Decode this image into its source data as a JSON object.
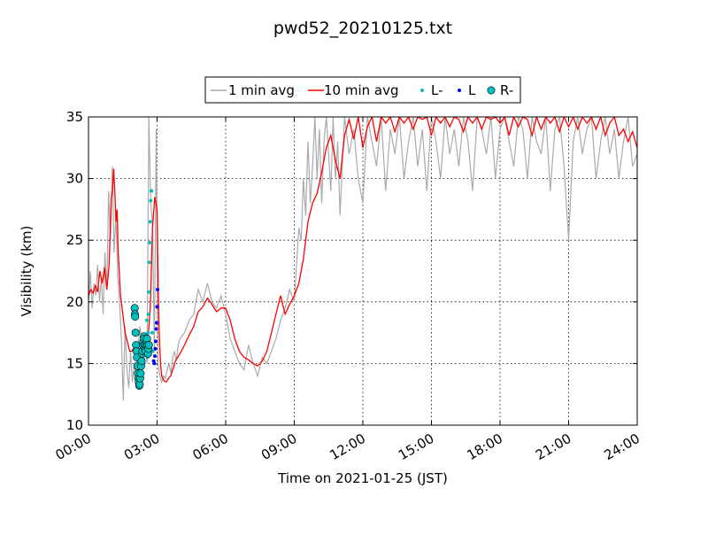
{
  "chart_data": {
    "type": "line",
    "title": "pwd52_20210125.txt",
    "xlabel": "Time on 2021-01-25 (JST)",
    "ylabel": "Visibility (km)",
    "x_unit": "hours",
    "xlim": [
      0,
      24
    ],
    "ylim": [
      10,
      35
    ],
    "x_ticks": [
      0,
      3,
      6,
      9,
      12,
      15,
      18,
      21,
      24
    ],
    "x_tick_labels": [
      "00:00",
      "03:00",
      "06:00",
      "09:00",
      "12:00",
      "15:00",
      "18:00",
      "21:00",
      "24:00"
    ],
    "y_ticks": [
      10,
      15,
      20,
      25,
      30,
      35
    ],
    "y_tick_labels": [
      "10",
      "15",
      "20",
      "25",
      "30",
      "35"
    ],
    "grid": true,
    "legend_placement": "top-center",
    "colors": {
      "one_min": "#aaaaaa",
      "ten_min": "#ff0000",
      "L_minus": "#00bfbf",
      "L": "#0000ff",
      "R_minus": "#00bfbf"
    },
    "legend": [
      {
        "label": "1 min avg",
        "kind": "line",
        "color": "#aaaaaa"
      },
      {
        "label": "10 min avg",
        "kind": "line",
        "color": "#ff0000"
      },
      {
        "label": "L-",
        "kind": "dot",
        "color": "#00bfbf"
      },
      {
        "label": "L",
        "kind": "dot",
        "color": "#0000ff"
      },
      {
        "label": "R-",
        "kind": "circle",
        "color": "#00bfbf"
      }
    ],
    "series": [
      {
        "name": "1 min avg",
        "x": [
          0.0,
          0.08,
          0.16,
          0.24,
          0.32,
          0.4,
          0.48,
          0.56,
          0.64,
          0.72,
          0.8,
          0.88,
          0.96,
          1.04,
          1.12,
          1.2,
          1.28,
          1.36,
          1.44,
          1.52,
          1.6,
          1.68,
          1.76,
          1.84,
          1.92,
          2.0,
          2.08,
          2.16,
          2.24,
          2.32,
          2.4,
          2.48,
          2.56,
          2.64,
          2.72,
          2.8,
          2.88,
          2.96,
          3.04,
          3.12,
          3.2,
          3.28,
          3.36,
          3.44,
          3.52,
          3.6,
          3.68,
          3.76,
          3.84,
          3.92,
          4.0,
          4.2,
          4.4,
          4.6,
          4.8,
          5.0,
          5.2,
          5.4,
          5.6,
          5.8,
          6.0,
          6.2,
          6.4,
          6.6,
          6.8,
          7.0,
          7.2,
          7.4,
          7.6,
          7.8,
          8.0,
          8.2,
          8.4,
          8.6,
          8.8,
          9.0,
          9.1,
          9.2,
          9.3,
          9.4,
          9.5,
          9.6,
          9.7,
          9.8,
          9.9,
          10.0,
          10.1,
          10.2,
          10.3,
          10.4,
          10.5,
          10.6,
          10.7,
          10.8,
          10.9,
          11.0,
          11.2,
          11.4,
          11.6,
          11.8,
          12.0,
          12.2,
          12.4,
          12.6,
          12.8,
          13.0,
          13.2,
          13.4,
          13.6,
          13.8,
          14.0,
          14.2,
          14.4,
          14.6,
          14.8,
          15.0,
          15.2,
          15.4,
          15.6,
          15.8,
          16.0,
          16.2,
          16.4,
          16.6,
          16.8,
          17.0,
          17.2,
          17.4,
          17.6,
          17.8,
          18.0,
          18.2,
          18.4,
          18.6,
          18.8,
          19.0,
          19.2,
          19.4,
          19.6,
          19.8,
          20.0,
          20.2,
          20.4,
          20.6,
          20.8,
          21.0,
          21.2,
          21.4,
          21.6,
          21.8,
          22.0,
          22.2,
          22.4,
          22.6,
          22.8,
          23.0,
          23.2,
          23.4,
          23.6,
          23.8,
          24.0
        ],
        "values": [
          20.0,
          22.5,
          19.5,
          21.5,
          20.5,
          23.0,
          20.0,
          22.0,
          19.0,
          24.0,
          21.0,
          29.0,
          25.0,
          31.0,
          24.0,
          27.0,
          22.0,
          20.0,
          17.0,
          12.0,
          18.0,
          14.5,
          13.0,
          16.0,
          13.5,
          15.0,
          14.0,
          16.0,
          18.0,
          17.0,
          15.0,
          16.5,
          15.0,
          35.0,
          28.0,
          26.5,
          16.0,
          34.0,
          15.0,
          14.0,
          13.5,
          14.0,
          13.8,
          14.5,
          15.0,
          14.2,
          15.5,
          16.0,
          15.2,
          16.5,
          17.0,
          17.5,
          18.5,
          19.0,
          21.0,
          20.0,
          21.5,
          20.0,
          19.5,
          20.5,
          19.0,
          17.0,
          16.0,
          15.0,
          14.5,
          16.5,
          15.0,
          14.0,
          15.5,
          15.0,
          16.0,
          17.0,
          18.5,
          19.5,
          21.0,
          20.0,
          23.0,
          26.0,
          25.0,
          30.0,
          27.0,
          33.0,
          28.0,
          31.0,
          35.0,
          30.0,
          34.0,
          28.0,
          33.0,
          35.0,
          32.0,
          29.0,
          35.0,
          30.0,
          33.0,
          27.0,
          35.0,
          32.0,
          34.0,
          30.0,
          28.0,
          35.0,
          33.0,
          31.0,
          35.0,
          29.0,
          34.0,
          32.0,
          35.0,
          30.0,
          33.0,
          35.0,
          31.0,
          34.0,
          29.0,
          35.0,
          33.0,
          30.0,
          35.0,
          32.0,
          34.0,
          31.0,
          35.0,
          33.0,
          29.0,
          35.0,
          34.0,
          32.0,
          35.0,
          30.0,
          34.0,
          35.0,
          33.0,
          31.0,
          35.0,
          34.0,
          30.0,
          35.0,
          33.0,
          32.0,
          35.0,
          29.0,
          34.0,
          35.0,
          31.0,
          25.0,
          33.0,
          35.0,
          32.0,
          34.0,
          35.0,
          30.0,
          33.0,
          35.0,
          32.0,
          34.0,
          30.0,
          33.0,
          35.0,
          31.0,
          32.0
        ]
      },
      {
        "name": "10 min avg",
        "x": [
          0.0,
          0.1,
          0.2,
          0.3,
          0.4,
          0.5,
          0.6,
          0.7,
          0.8,
          0.9,
          1.0,
          1.05,
          1.1,
          1.15,
          1.2,
          1.25,
          1.3,
          1.4,
          1.5,
          1.6,
          1.7,
          1.8,
          1.9,
          2.0,
          2.1,
          2.2,
          2.3,
          2.4,
          2.5,
          2.6,
          2.7,
          2.8,
          2.9,
          3.0,
          3.05,
          3.1,
          3.15,
          3.2,
          3.3,
          3.4,
          3.5,
          3.6,
          3.7,
          3.8,
          4.0,
          4.2,
          4.4,
          4.6,
          4.8,
          5.0,
          5.2,
          5.4,
          5.6,
          5.8,
          6.0,
          6.2,
          6.4,
          6.6,
          6.8,
          7.0,
          7.2,
          7.4,
          7.6,
          7.8,
          8.0,
          8.2,
          8.4,
          8.6,
          8.8,
          9.0,
          9.2,
          9.4,
          9.6,
          9.8,
          10.0,
          10.2,
          10.4,
          10.6,
          10.8,
          11.0,
          11.2,
          11.4,
          11.6,
          11.8,
          12.0,
          12.2,
          12.4,
          12.6,
          12.8,
          13.0,
          13.2,
          13.4,
          13.6,
          13.8,
          14.0,
          14.2,
          14.4,
          14.6,
          14.8,
          15.0,
          15.2,
          15.4,
          15.6,
          15.8,
          16.0,
          16.2,
          16.4,
          16.6,
          16.8,
          17.0,
          17.2,
          17.4,
          17.6,
          17.8,
          18.0,
          18.2,
          18.4,
          18.6,
          18.8,
          19.0,
          19.2,
          19.4,
          19.6,
          19.8,
          20.0,
          20.2,
          20.4,
          20.6,
          20.8,
          21.0,
          21.2,
          21.4,
          21.6,
          21.8,
          22.0,
          22.2,
          22.4,
          22.6,
          22.8,
          23.0,
          23.2,
          23.4,
          23.6,
          23.8,
          24.0
        ],
        "values": [
          20.5,
          21.0,
          20.7,
          21.3,
          20.8,
          22.5,
          21.5,
          22.8,
          21.0,
          23.0,
          28.5,
          29.0,
          30.8,
          29.0,
          26.5,
          27.5,
          24.0,
          20.5,
          19.0,
          17.5,
          16.8,
          16.0,
          16.0,
          16.3,
          16.5,
          16.5,
          16.8,
          17.0,
          16.5,
          17.0,
          19.5,
          26.0,
          28.5,
          27.5,
          21.0,
          17.0,
          15.0,
          14.0,
          13.6,
          13.5,
          13.8,
          14.0,
          14.6,
          15.2,
          15.8,
          16.5,
          17.3,
          18.0,
          19.2,
          19.6,
          20.3,
          19.8,
          19.2,
          19.5,
          19.5,
          18.5,
          17.0,
          16.0,
          15.5,
          15.3,
          15.0,
          14.8,
          15.2,
          16.0,
          17.5,
          19.0,
          20.5,
          19.0,
          19.8,
          20.5,
          21.5,
          23.5,
          26.5,
          28.0,
          28.8,
          30.5,
          32.5,
          33.5,
          31.5,
          30.0,
          33.5,
          34.8,
          33.2,
          35.0,
          32.5,
          34.2,
          35.0,
          33.0,
          35.0,
          34.5,
          35.0,
          33.8,
          35.0,
          34.5,
          35.0,
          34.0,
          35.0,
          34.8,
          35.0,
          33.5,
          35.0,
          34.5,
          35.0,
          34.2,
          35.0,
          34.8,
          33.8,
          35.0,
          34.5,
          35.0,
          34.0,
          35.0,
          34.8,
          35.0,
          34.5,
          35.0,
          33.5,
          35.0,
          34.2,
          35.0,
          34.8,
          33.5,
          35.0,
          34.0,
          35.0,
          34.5,
          35.0,
          33.8,
          35.0,
          34.2,
          35.0,
          34.0,
          35.0,
          34.5,
          35.0,
          34.0,
          35.0,
          33.5,
          34.5,
          35.0,
          33.5,
          34.0,
          33.0,
          33.8,
          32.5
        ]
      }
    ],
    "markers": [
      {
        "name": "L-",
        "x": [
          2.55,
          2.58,
          2.6,
          2.62,
          2.64,
          2.66,
          2.68,
          2.7,
          2.72,
          2.74,
          2.76,
          2.78,
          2.8
        ],
        "values": [
          18.5,
          15.5,
          17.5,
          19.0,
          20.8,
          23.2,
          24.8,
          26.5,
          28.2,
          29.0,
          29.0,
          17.5,
          16.0
        ]
      },
      {
        "name": "L",
        "x": [
          2.85,
          2.88,
          2.9,
          2.92,
          2.94,
          2.96,
          2.98,
          3.0,
          3.02
        ],
        "values": [
          15.2,
          15.0,
          15.6,
          16.2,
          16.8,
          17.8,
          18.3,
          19.6,
          21.0
        ]
      },
      {
        "name": "R-",
        "x": [
          2.02,
          2.03,
          2.04,
          2.06,
          2.08,
          2.1,
          2.12,
          2.14,
          2.16,
          2.18,
          2.2,
          2.22,
          2.24,
          2.26,
          2.28,
          2.3,
          2.32,
          2.34,
          2.36,
          2.38,
          2.4,
          2.42,
          2.44,
          2.46,
          2.48,
          2.5,
          2.52,
          2.54,
          2.56,
          2.58,
          2.6,
          2.62,
          2.64
        ],
        "values": [
          19.5,
          19.0,
          18.8,
          17.5,
          16.5,
          16.0,
          15.5,
          14.8,
          14.2,
          13.8,
          13.5,
          13.2,
          13.3,
          13.8,
          14.2,
          14.8,
          15.2,
          15.8,
          16.0,
          16.5,
          16.8,
          17.2,
          17.0,
          16.5,
          16.2,
          16.0,
          16.5,
          16.8,
          17.0,
          16.5,
          15.8,
          16.2,
          16.5
        ]
      }
    ]
  }
}
